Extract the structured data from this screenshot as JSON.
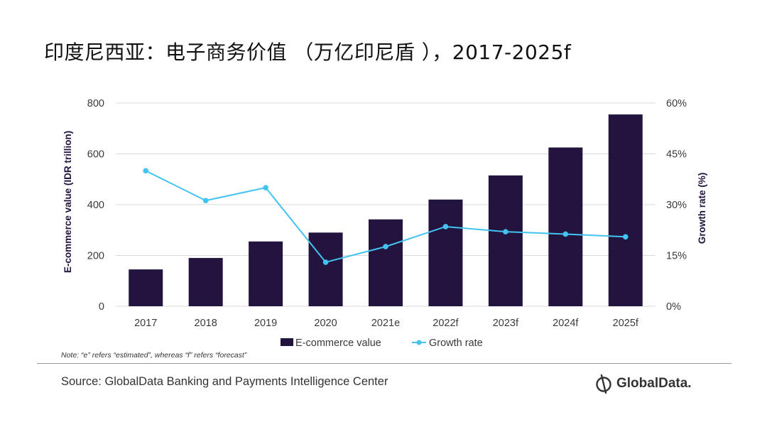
{
  "title": "印度尼西亚：电子商务价值 （万亿印尼盾 ），2017-2025f",
  "note": "Note: “e” refers “estimated”, whereas “f” refers “forecast”",
  "source": "Source: GlobalData Banking and Payments Intelligence Center",
  "brand": {
    "name": "GlobalData.",
    "icon": "globaldata-logo-icon"
  },
  "colors": {
    "bar": "#22143f",
    "line": "#43c3f0",
    "grid": "#d9d9d9",
    "axis_text": "#3a3a3a"
  },
  "chart_data": {
    "type": "bar",
    "categories": [
      "2017",
      "2018",
      "2019",
      "2020",
      "2021e",
      "2022f",
      "2023f",
      "2024f",
      "2025f"
    ],
    "series": [
      {
        "name": "E-commerce value",
        "type": "bar",
        "axis": "left",
        "values": [
          145,
          190,
          255,
          290,
          342,
          420,
          515,
          625,
          755
        ]
      },
      {
        "name": "Growth rate",
        "type": "line",
        "axis": "right",
        "values": [
          40,
          31.2,
          35,
          13,
          17.6,
          23.5,
          22,
          21.3,
          20.5
        ]
      }
    ],
    "ylabel": "E-commerce value (IDR trillion)",
    "y2label": "Growth rate (%)",
    "ylim": [
      0,
      800
    ],
    "yticks": [
      "0",
      "200",
      "400",
      "600",
      "800"
    ],
    "y2lim": [
      0,
      60
    ],
    "y2ticks": [
      "0%",
      "15%",
      "30%",
      "45%",
      "60%"
    ],
    "grid": true,
    "legend_position": "bottom"
  }
}
